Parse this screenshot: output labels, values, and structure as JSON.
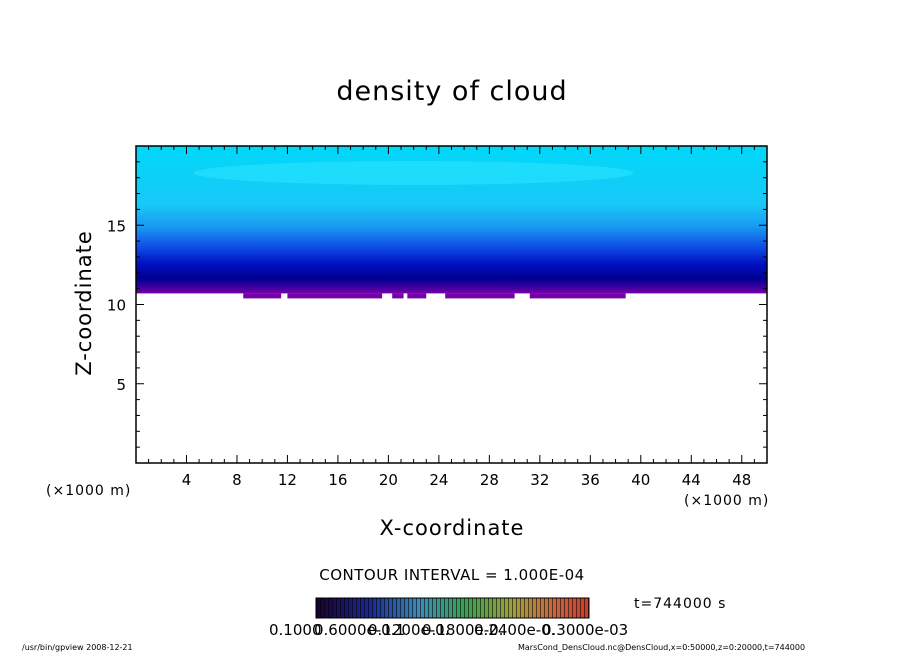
{
  "chart_data": {
    "type": "contour",
    "title": "density of cloud",
    "xlabel": "X-coordinate",
    "ylabel": "Z-coordinate",
    "x_unit_left": "(×1000 m)",
    "x_unit_right": "(×1000 m)",
    "xlim": [
      0,
      50
    ],
    "ylim": [
      0,
      20
    ],
    "x_ticks": [
      "4",
      "8",
      "12",
      "16",
      "20",
      "24",
      "28",
      "32",
      "36",
      "40",
      "44",
      "48"
    ],
    "y_ticks": [
      "5",
      "10",
      "15"
    ],
    "x_tick_values": [
      4,
      8,
      12,
      16,
      20,
      24,
      28,
      32,
      36,
      40,
      44,
      48
    ],
    "y_tick_values": [
      5,
      10,
      15
    ],
    "cloud_base_z": 10.7,
    "cloud_top_z": 20,
    "contour_interval": "CONTOUR INTERVAL = 1.000E-04",
    "colorbar_labels": [
      "0.1000",
      "0.6000e-0.1",
      "0.1200e-0.",
      "0.1800e-0.",
      "0.2400e-0.",
      "0.3000e-03"
    ],
    "colors": {
      "top": "#00d8f8",
      "upper": "#20c0f8",
      "mid": "#1060f0",
      "deep": "#0000a8",
      "base": "#7800a8",
      "colorbar_low": "#1a0030",
      "colorbar_high": "#c83c28"
    }
  },
  "annotations": {
    "time": "t=744000  s",
    "footer_left": "/usr/bin/gpview   2008-12-21",
    "footer_right": "MarsCond_DensCloud.nc@DensCloud,x=0:50000,z=0:20000,t=744000"
  }
}
